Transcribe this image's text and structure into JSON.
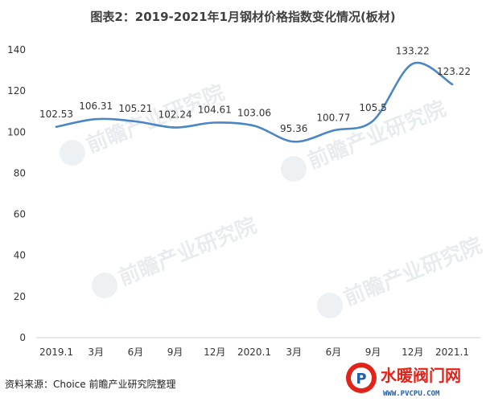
{
  "chart_data": {
    "type": "line",
    "title": "图表2：2019-2021年1月钢材价格指数变化情况(板材)",
    "categories": [
      "2019.1",
      "3月",
      "6月",
      "9月",
      "12月",
      "2020.1",
      "3月",
      "6月",
      "9月",
      "12月",
      "2021.1"
    ],
    "series": [
      {
        "values": [
          102.53,
          106.31,
          105.21,
          102.24,
          104.61,
          103.06,
          95.36,
          100.77,
          105.5,
          133.22,
          123.22
        ]
      }
    ],
    "data_labels": [
      "102.53",
      "106.31",
      "105.21",
      "102.24",
      "104.61",
      "103.06",
      "95.36",
      "100.77",
      "105.5",
      "133.22",
      "123.22"
    ],
    "ylim": [
      0,
      140
    ],
    "yticks": [
      0,
      20,
      40,
      60,
      80,
      100,
      120,
      140
    ],
    "xlabel": "",
    "ylabel": "",
    "grid": false,
    "legend": "none",
    "line_color": "#4a86c5"
  },
  "source": "资料来源：Choice 前瞻产业研究院整理",
  "watermark": {
    "text": "前瞻产业研究院",
    "color": "#e9ecef"
  },
  "logo": {
    "name": "水暖阀门网",
    "url_text": "WWW.PVCPU.COM",
    "badge_letter": "P",
    "colors": {
      "primary": "#e2231a",
      "secondary": "#1f5fa8"
    }
  }
}
